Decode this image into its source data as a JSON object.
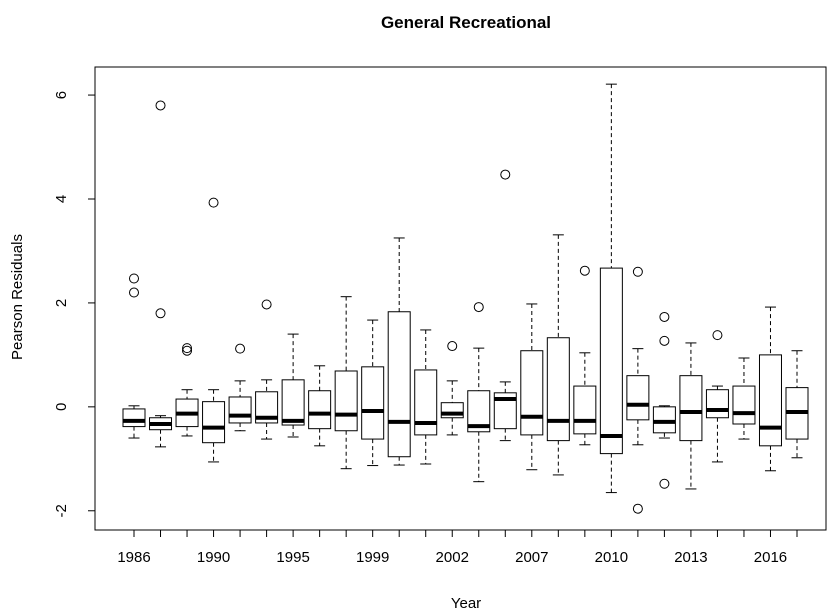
{
  "chart_data": {
    "type": "box",
    "title": "General Recreational",
    "x_label": "Year",
    "y_label": "Pearson Residuals",
    "categories": [
      "1986",
      null,
      null,
      "1990",
      null,
      null,
      "1995",
      null,
      null,
      "1999",
      null,
      null,
      "2002",
      null,
      null,
      "2007",
      null,
      null,
      "2010",
      null,
      null,
      "2013",
      null,
      null,
      "2016",
      null
    ],
    "boxes": [
      {
        "whislo": -0.6,
        "q1": -0.38,
        "med": -0.27,
        "q3": -0.04,
        "whishi": 0.02,
        "outliers": [
          2.47,
          2.2
        ]
      },
      {
        "whislo": -0.77,
        "q1": -0.44,
        "med": -0.33,
        "q3": -0.21,
        "whishi": -0.17,
        "outliers": [
          5.8,
          1.8
        ]
      },
      {
        "whislo": -0.56,
        "q1": -0.38,
        "med": -0.13,
        "q3": 0.15,
        "whishi": 0.33,
        "outliers": [
          1.13,
          1.08
        ]
      },
      {
        "whislo": -1.06,
        "q1": -0.69,
        "med": -0.4,
        "q3": 0.1,
        "whishi": 0.33,
        "outliers": [
          3.93
        ]
      },
      {
        "whislo": -0.46,
        "q1": -0.31,
        "med": -0.17,
        "q3": 0.19,
        "whishi": 0.5,
        "outliers": [
          1.12
        ]
      },
      {
        "whislo": -0.62,
        "q1": -0.31,
        "med": -0.21,
        "q3": 0.29,
        "whishi": 0.52,
        "outliers": [
          1.97
        ]
      },
      {
        "whislo": -0.58,
        "q1": -0.35,
        "med": -0.27,
        "q3": 0.52,
        "whishi": 1.4,
        "outliers": []
      },
      {
        "whislo": -0.75,
        "q1": -0.42,
        "med": -0.13,
        "q3": 0.31,
        "whishi": 0.79,
        "outliers": []
      },
      {
        "whislo": -1.19,
        "q1": -0.46,
        "med": -0.15,
        "q3": 0.69,
        "whishi": 2.12,
        "outliers": []
      },
      {
        "whislo": -1.13,
        "q1": -0.62,
        "med": -0.08,
        "q3": 0.77,
        "whishi": 1.67,
        "outliers": []
      },
      {
        "whislo": -1.12,
        "q1": -0.96,
        "med": -0.29,
        "q3": 1.83,
        "whishi": 3.25,
        "outliers": []
      },
      {
        "whislo": -1.1,
        "q1": -0.54,
        "med": -0.31,
        "q3": 0.71,
        "whishi": 1.48,
        "outliers": []
      },
      {
        "whislo": -0.54,
        "q1": -0.21,
        "med": -0.13,
        "q3": 0.08,
        "whishi": 0.5,
        "outliers": [
          1.17
        ]
      },
      {
        "whislo": -1.44,
        "q1": -0.48,
        "med": -0.37,
        "q3": 0.31,
        "whishi": 1.13,
        "outliers": [
          1.92
        ]
      },
      {
        "whislo": -0.65,
        "q1": -0.42,
        "med": 0.15,
        "q3": 0.27,
        "whishi": 0.48,
        "outliers": [
          4.47
        ]
      },
      {
        "whislo": -1.21,
        "q1": -0.54,
        "med": -0.19,
        "q3": 1.08,
        "whishi": 1.98,
        "outliers": []
      },
      {
        "whislo": -1.31,
        "q1": -0.65,
        "med": -0.27,
        "q3": 1.33,
        "whishi": 3.31,
        "outliers": []
      },
      {
        "whislo": -0.73,
        "q1": -0.52,
        "med": -0.27,
        "q3": 0.4,
        "whishi": 1.04,
        "outliers": [
          2.62
        ]
      },
      {
        "whislo": -1.65,
        "q1": -0.9,
        "med": -0.56,
        "q3": 2.67,
        "whishi": 6.21,
        "outliers": []
      },
      {
        "whislo": -0.73,
        "q1": -0.25,
        "med": 0.04,
        "q3": 0.6,
        "whishi": 1.12,
        "outliers": [
          2.6,
          -1.96
        ]
      },
      {
        "whislo": -0.6,
        "q1": -0.5,
        "med": -0.29,
        "q3": 0,
        "whishi": 0.02,
        "outliers": [
          1.73,
          1.27,
          -1.48
        ]
      },
      {
        "whislo": -1.58,
        "q1": -0.65,
        "med": -0.1,
        "q3": 0.6,
        "whishi": 1.23,
        "outliers": []
      },
      {
        "whislo": -1.06,
        "q1": -0.21,
        "med": -0.06,
        "q3": 0.33,
        "whishi": 0.4,
        "outliers": [
          1.38
        ]
      },
      {
        "whislo": -0.62,
        "q1": -0.33,
        "med": -0.12,
        "q3": 0.4,
        "whishi": 0.94,
        "outliers": []
      },
      {
        "whislo": -1.23,
        "q1": -0.75,
        "med": -0.4,
        "q3": 1.0,
        "whishi": 1.92,
        "outliers": []
      },
      {
        "whislo": -0.98,
        "q1": -0.62,
        "med": -0.1,
        "q3": 0.37,
        "whishi": 1.08,
        "outliers": []
      }
    ],
    "ylim": [
      -2.37,
      6.54
    ],
    "yticks": [
      -2,
      0,
      2,
      4,
      6
    ],
    "grid": false
  }
}
